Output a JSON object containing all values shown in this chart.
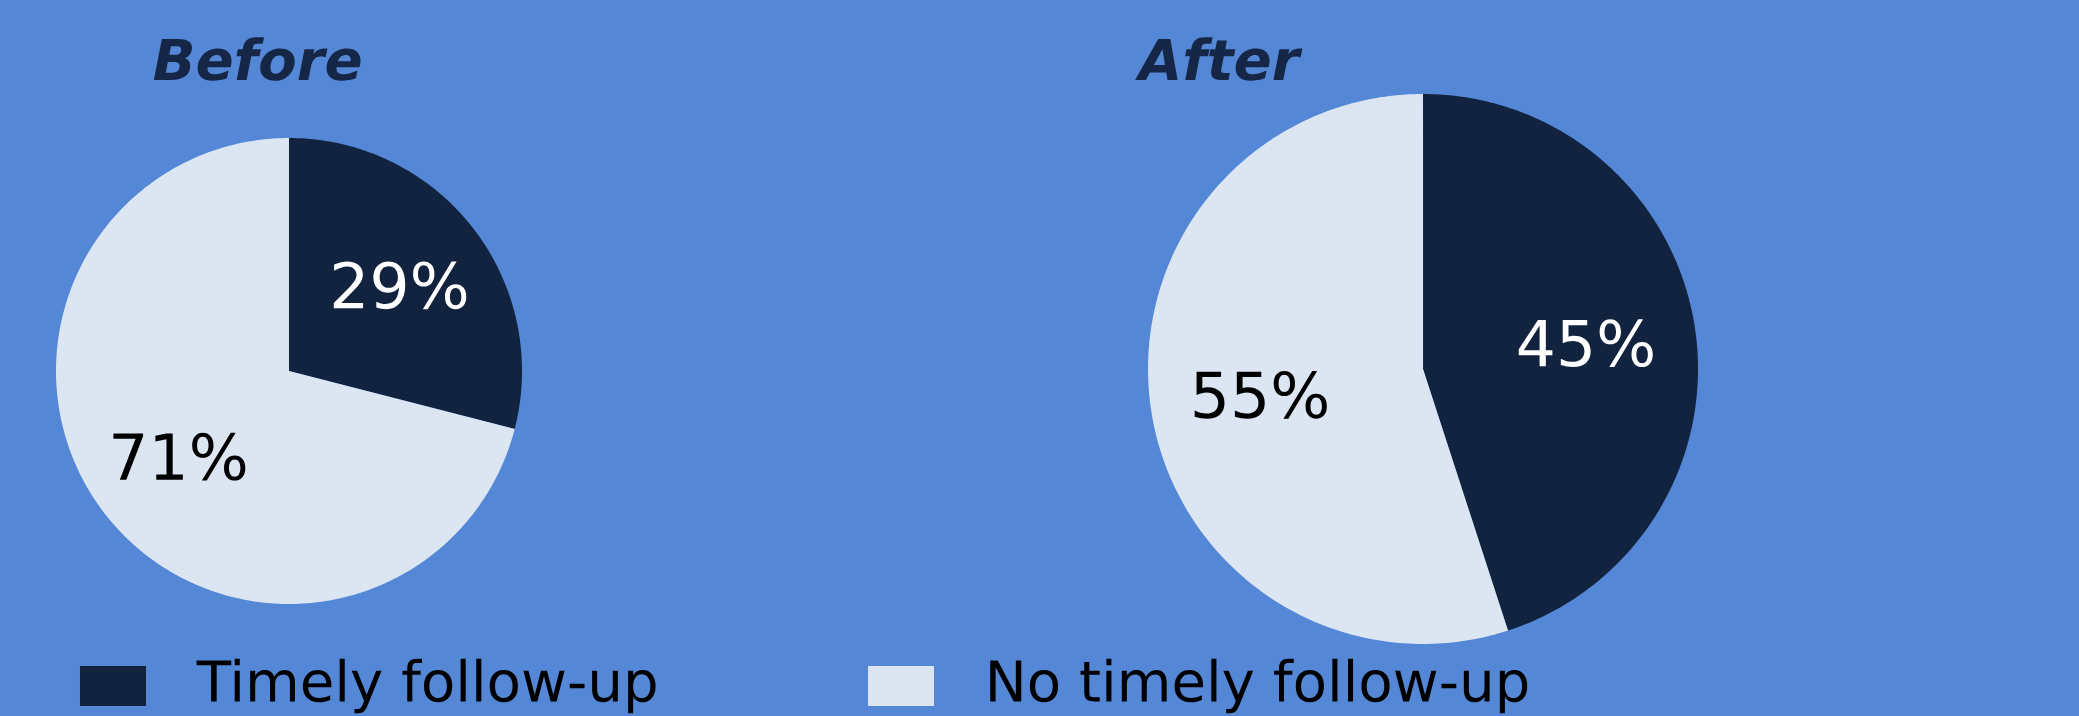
{
  "chart_data": [
    {
      "type": "pie",
      "title": "Before",
      "categories": [
        "Timely follow-up",
        "No timely follow-up"
      ],
      "values": [
        29,
        71
      ],
      "colors": [
        "#12233f",
        "#dce6f2"
      ],
      "value_labels": [
        "29%",
        "71%"
      ],
      "legend": "bottom"
    },
    {
      "type": "pie",
      "title": "After",
      "categories": [
        null,
        null
      ],
      "values": [
        45,
        55
      ],
      "colors": [
        "#12233f",
        "#dce6f2"
      ],
      "value_labels": [
        "45%",
        "55%"
      ]
    }
  ]
}
